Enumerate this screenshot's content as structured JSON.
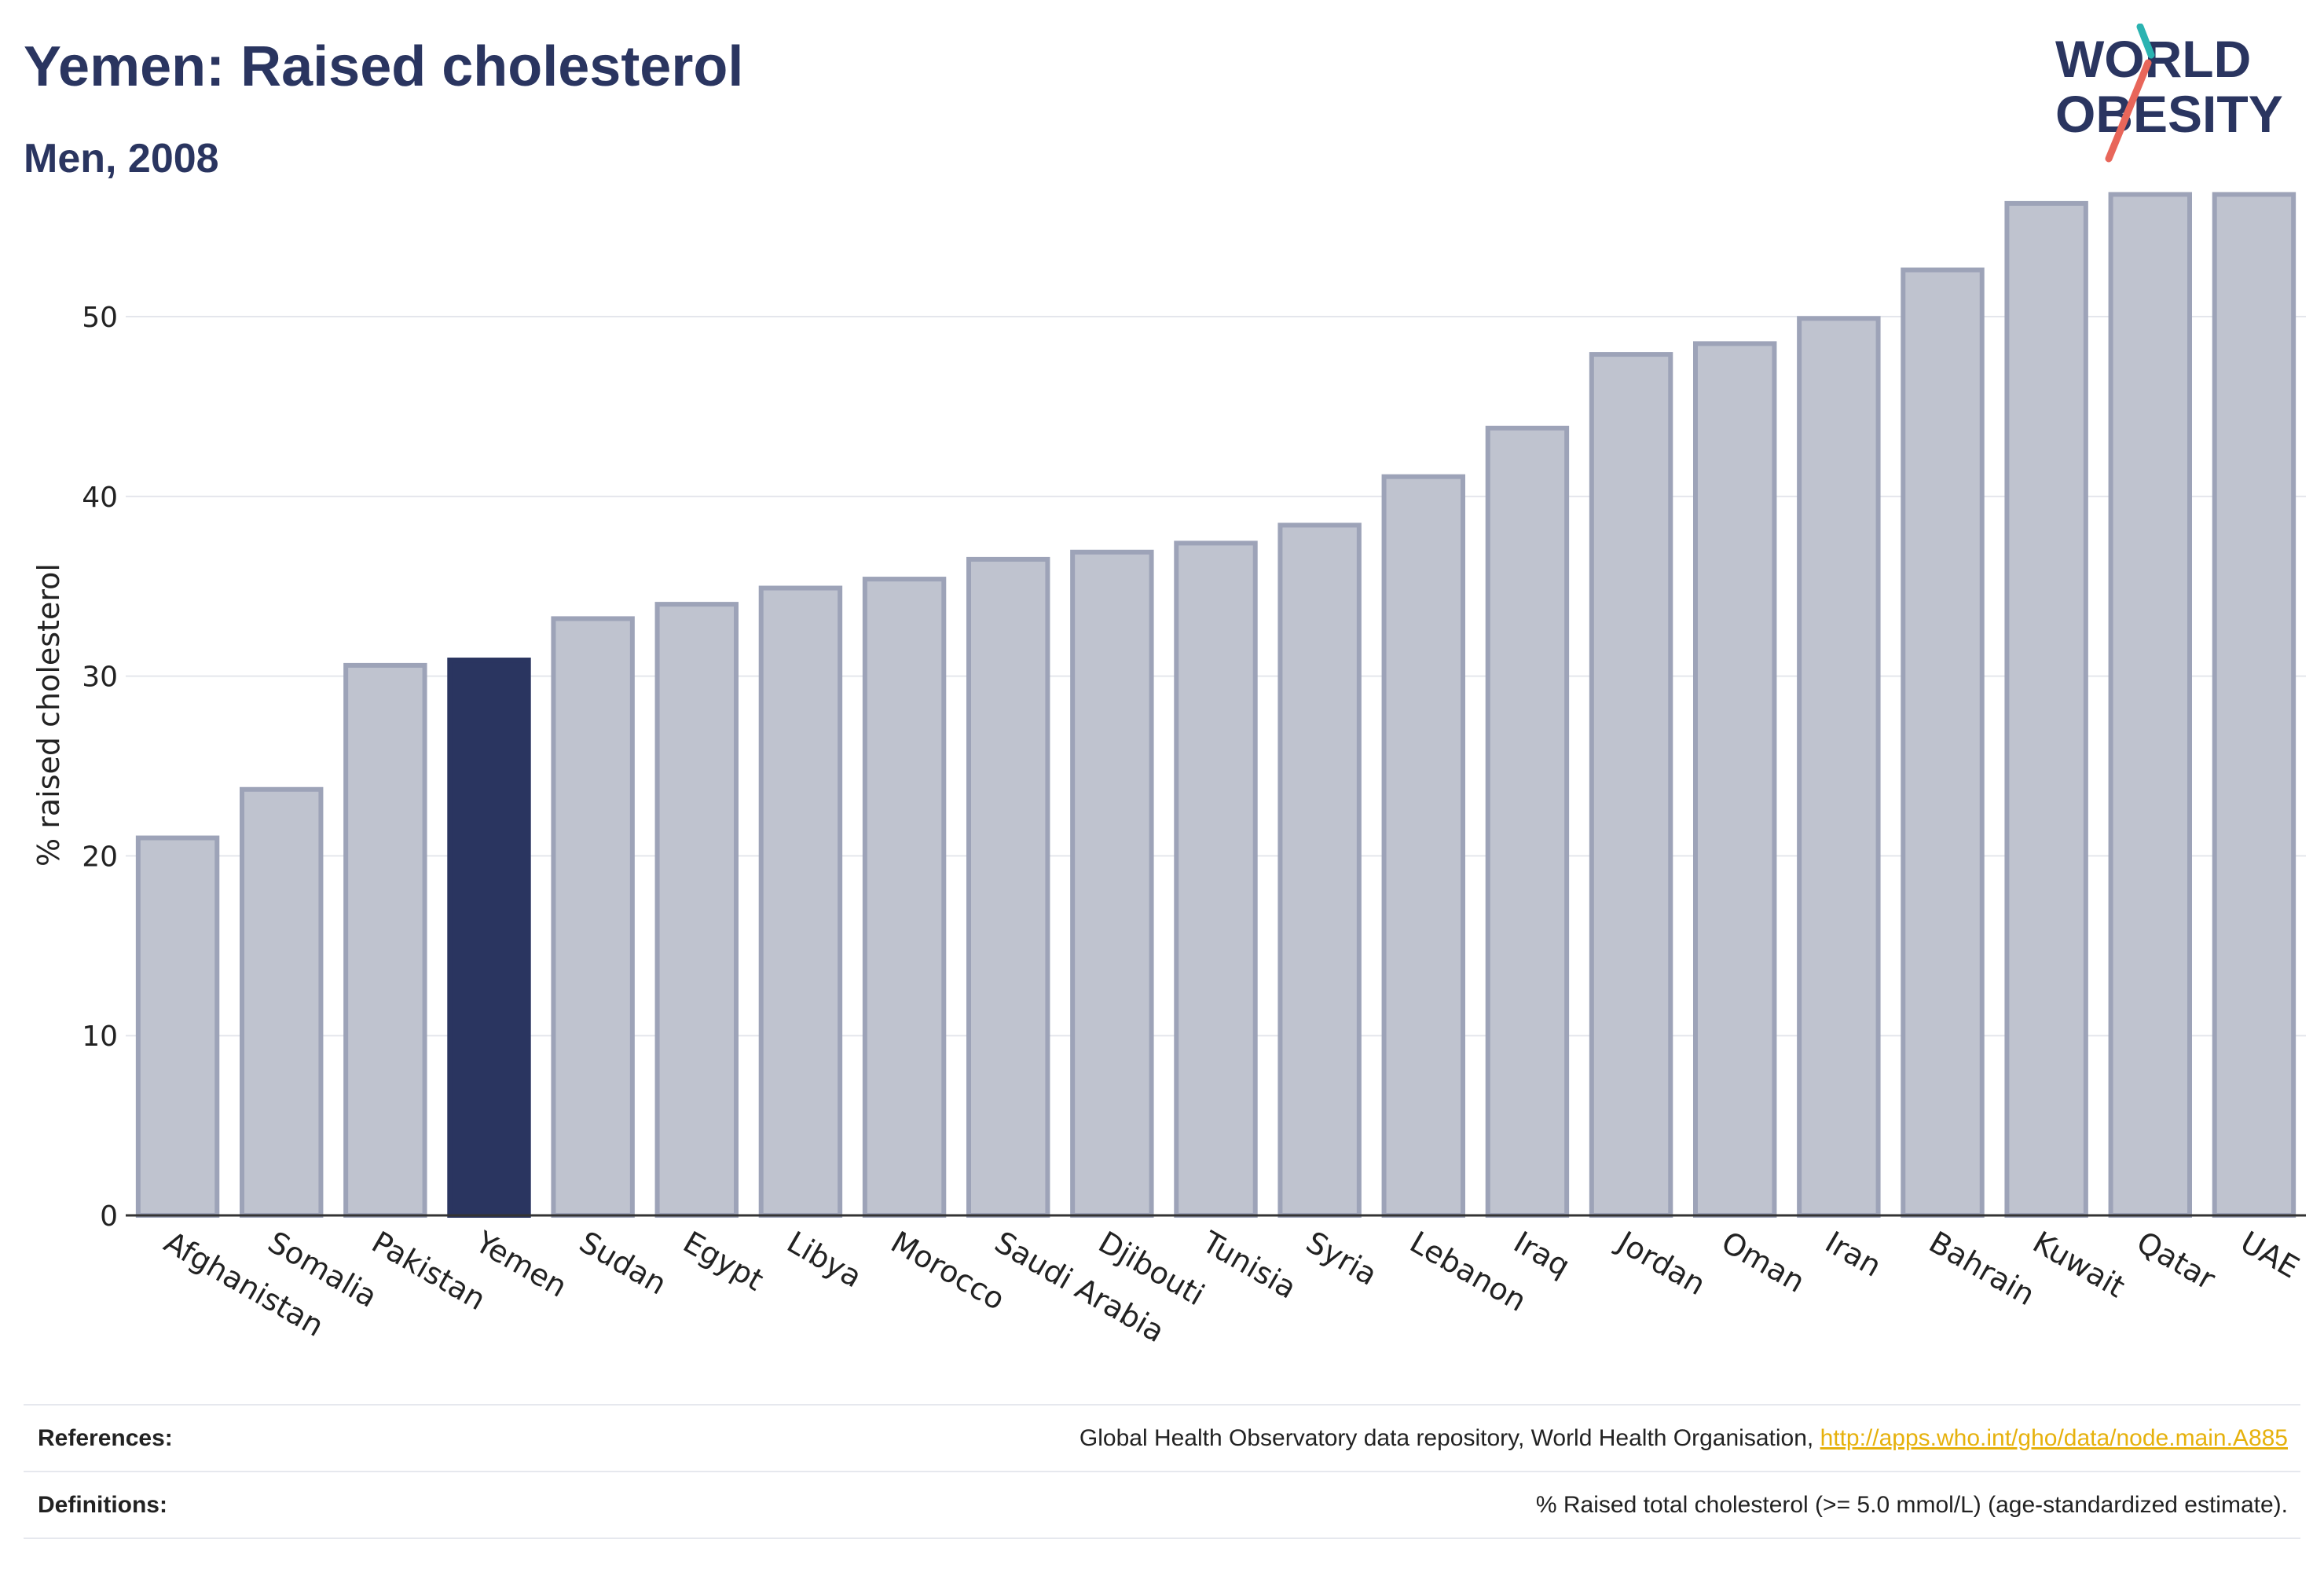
{
  "header": {
    "title": "Yemen: Raised cholesterol",
    "subtitle": "Men, 2008"
  },
  "logo": {
    "line1": "WORLD",
    "line2": "OBESITY",
    "colors": {
      "text": "#2a3560",
      "slash_top": "#2bb3b1",
      "slash_bottom": "#e8665a"
    }
  },
  "chart_data": {
    "type": "bar",
    "ylabel": "% raised cholesterol",
    "xlabel": "",
    "ylim": [
      0,
      58
    ],
    "yticks": [
      0,
      10,
      20,
      30,
      40,
      50
    ],
    "grid": true,
    "categories": [
      "Afghanistan",
      "Somalia",
      "Pakistan",
      "Yemen",
      "Sudan",
      "Egypt",
      "Libya",
      "Morocco",
      "Saudi Arabia",
      "Djibouti",
      "Tunisia",
      "Syria",
      "Lebanon",
      "Iraq",
      "Jordan",
      "Oman",
      "Iran",
      "Bahrain",
      "Kuwait",
      "Qatar",
      "UAE"
    ],
    "values": [
      21.0,
      23.7,
      30.6,
      30.9,
      33.2,
      34.0,
      34.9,
      35.4,
      36.5,
      36.9,
      37.4,
      38.4,
      41.1,
      43.8,
      47.9,
      48.5,
      49.9,
      52.6,
      56.3,
      56.8,
      56.8
    ],
    "highlight": "Yemen",
    "colors": {
      "bar": "#bfc3cf",
      "bar_border": "#9da3b8",
      "highlight": "#2a3560",
      "grid": "#e4e6ec",
      "axis": "#333333"
    }
  },
  "footer": {
    "references_label": "References:",
    "references_text": "Global Health Observatory data repository, World Health Organisation, ",
    "references_link": "http://apps.who.int/gho/data/node.main.A885",
    "definitions_label": "Definitions:",
    "definitions_text": "% Raised total cholesterol (>= 5.0 mmol/L) (age-standardized estimate)."
  }
}
